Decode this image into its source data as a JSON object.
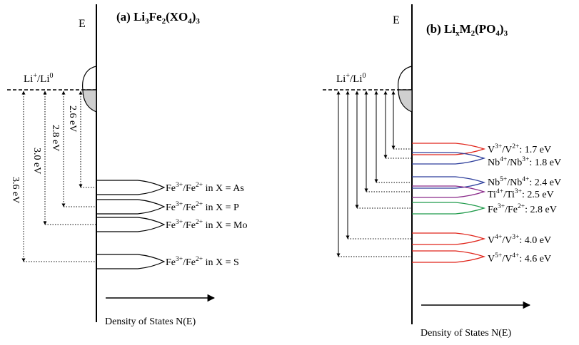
{
  "colors": {
    "ink": "#000000",
    "red": "#e0251b",
    "blue": "#2e3f9c",
    "purple": "#8a2a8a",
    "green": "#1f9a4a",
    "filled_band": "#cfcfcf"
  },
  "panel_a": {
    "title": {
      "prefix": "(a) Li",
      "s1": "3",
      "m1": "Fe",
      "s2": "2",
      "m2": "(XO",
      "s3": "4",
      "m3": ")",
      "s4": "3"
    },
    "axis_label": "E",
    "reference": {
      "main": "Li",
      "sup1": "+",
      "sep": "/Li",
      "sup2": "0"
    },
    "dos_label": "Density of States N(E)",
    "gaps": [
      "2.6 eV",
      "2.8 eV",
      "3.0 eV",
      "3.6 eV"
    ],
    "bands": [
      {
        "ion": "Fe",
        "sup1": "3+",
        "sep": "/Fe",
        "sup2": "2+",
        "text": " in X = As",
        "color": "black"
      },
      {
        "ion": "Fe",
        "sup1": "3+",
        "sep": "/Fe",
        "sup2": "2+",
        "text": " in X = P",
        "color": "black"
      },
      {
        "ion": "Fe",
        "sup1": "3+",
        "sep": "/Fe",
        "sup2": "2+",
        "text": " in X = Mo",
        "color": "black"
      },
      {
        "ion": "Fe",
        "sup1": "3+",
        "sep": "/Fe",
        "sup2": "2+",
        "text": " in X = S",
        "color": "black"
      }
    ]
  },
  "panel_b": {
    "title": {
      "prefix": "(b) Li",
      "s1": "x",
      "m1": "M",
      "s2": "2",
      "m2": "(PO",
      "s3": "4",
      "m3": ")",
      "s4": "3"
    },
    "axis_label": "E",
    "reference": {
      "main": "Li",
      "sup1": "+",
      "sep": "/Li",
      "sup2": "0"
    },
    "dos_label": "Density of States N(E)",
    "bands": [
      {
        "ion": "V",
        "sup1": "3+",
        "sep": "/V",
        "sup2": "2+",
        "text": ": 1.7 eV",
        "color": "red"
      },
      {
        "ion": "Nb",
        "sup1": "4+",
        "sep": "/Nb",
        "sup2": "3+",
        "text": ": 1.8 eV",
        "color": "blue"
      },
      {
        "ion": "Nb",
        "sup1": "5+",
        "sep": "/Nb",
        "sup2": "4+",
        "text": ": 2.4 eV",
        "color": "blue"
      },
      {
        "ion": "Ti",
        "sup1": "4+",
        "sep": "/Ti",
        "sup2": "3+",
        "text": ": 2.5 eV",
        "color": "purple"
      },
      {
        "ion": "Fe",
        "sup1": "3+",
        "sep": "/Fe",
        "sup2": "2+",
        "text": ": 2.8 eV",
        "color": "green"
      },
      {
        "ion": "V",
        "sup1": "4+",
        "sep": "/V",
        "sup2": "3+",
        "text": ": 4.0 eV",
        "color": "red"
      },
      {
        "ion": "V",
        "sup1": "5+",
        "sep": "/V",
        "sup2": "4+",
        "text": ": 4.6 eV",
        "color": "red"
      }
    ]
  }
}
